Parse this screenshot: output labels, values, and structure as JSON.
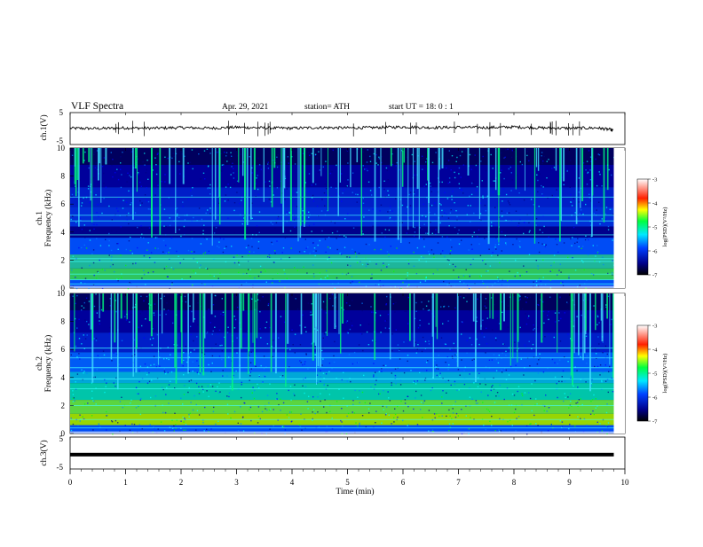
{
  "header": {
    "title": "VLF  Spectra",
    "date": "Apr. 29, 2021",
    "station": "station= ATH",
    "start": "start  UT  =    18: 0   : 1"
  },
  "chart_data": [
    {
      "type": "line",
      "name": "ch1-waveform",
      "ylabel": "ch.1(V)",
      "ylim": [
        -5,
        5
      ],
      "yticks": [
        "5",
        "-5"
      ],
      "xlim": [
        0,
        10
      ],
      "x": [
        0.0,
        0.5,
        1.0,
        1.5,
        2.0,
        2.5,
        3.0,
        3.5,
        4.0,
        4.5,
        5.0,
        5.5,
        6.0,
        6.5,
        7.0,
        7.5,
        8.0,
        8.5,
        9.0,
        9.5,
        9.8
      ],
      "values": [
        0.1,
        0.0,
        0.2,
        0.1,
        0.3,
        0.1,
        0.4,
        0.2,
        0.1,
        0.3,
        0.2,
        0.3,
        0.5,
        0.3,
        0.4,
        0.3,
        0.5,
        0.2,
        0.1,
        0.2,
        -0.5
      ]
    },
    {
      "type": "heatmap",
      "name": "ch1-spectrogram",
      "ylabel": "ch.1\nFrequency  (kHz)",
      "ylim": [
        0,
        10
      ],
      "yticks": [
        "0",
        "2",
        "4",
        "6",
        "8",
        "10"
      ],
      "xlim": [
        0,
        9.8
      ],
      "colorbar": {
        "label": "log(PSD)(V²/Hz)",
        "range": [
          -7,
          -3
        ],
        "ticks": [
          "-3",
          "-4",
          "-5",
          "-6",
          "-7"
        ]
      }
    },
    {
      "type": "heatmap",
      "name": "ch2-spectrogram",
      "ylabel": "ch.2\nFrequency  (kHz)",
      "ylim": [
        0,
        10
      ],
      "yticks": [
        "0",
        "2",
        "4",
        "6",
        "8",
        "10"
      ],
      "xlim": [
        0,
        9.8
      ],
      "colorbar": {
        "label": "log(PSD)(V²/Hz)",
        "range": [
          -7,
          -3
        ],
        "ticks": [
          "-3",
          "-4",
          "-5",
          "-6",
          "-7"
        ]
      }
    },
    {
      "type": "line",
      "name": "ch3-waveform",
      "ylabel": "ch.3(V)",
      "ylim": [
        -5,
        5
      ],
      "yticks": [
        "5",
        "-5"
      ],
      "xlim": [
        0,
        10
      ],
      "x": [
        0.0,
        9.8
      ],
      "values": [
        -0.5,
        -0.5
      ]
    }
  ],
  "xaxis": {
    "label": "Time  (min)",
    "ticks": [
      "0",
      "1",
      "2",
      "3",
      "4",
      "5",
      "6",
      "7",
      "8",
      "9",
      "10"
    ]
  },
  "colors": {
    "palette": [
      "#000000",
      "#000080",
      "#0000ff",
      "#0080ff",
      "#00ffff",
      "#00ff00",
      "#ffff00",
      "#ff8000",
      "#ff0000",
      "#ffffff"
    ]
  }
}
